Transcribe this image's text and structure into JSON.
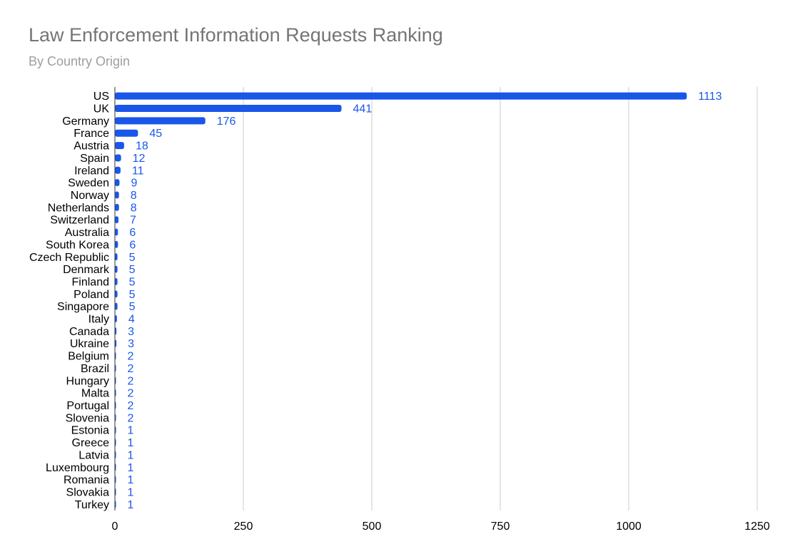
{
  "chart_data": {
    "type": "bar",
    "orientation": "horizontal",
    "title": "Law Enforcement Information Requests Ranking",
    "subtitle": "By Country Origin",
    "xlabel": "",
    "ylabel": "",
    "xlim": [
      0,
      1250
    ],
    "x_ticks": [
      0,
      250,
      500,
      750,
      1000,
      1250
    ],
    "grid": true,
    "data_labels": true,
    "bar_color": "#1a57e8",
    "label_color": "#1a57e8",
    "categories": [
      "US",
      "UK",
      "Germany",
      "France",
      "Austria",
      "Spain",
      "Ireland",
      "Sweden",
      "Norway",
      "Netherlands",
      "Switzerland",
      "Australia",
      "South Korea",
      "Czech Republic",
      "Denmark",
      "Finland",
      "Poland",
      "Singapore",
      "Italy",
      "Canada",
      "Ukraine",
      "Belgium",
      "Brazil",
      "Hungary",
      "Malta",
      "Portugal",
      "Slovenia",
      "Estonia",
      "Greece",
      "Latvia",
      "Luxembourg",
      "Romania",
      "Slovakia",
      "Turkey"
    ],
    "values": [
      1113,
      441,
      176,
      45,
      18,
      12,
      11,
      9,
      8,
      8,
      7,
      6,
      6,
      5,
      5,
      5,
      5,
      5,
      4,
      3,
      3,
      2,
      2,
      2,
      2,
      2,
      2,
      1,
      1,
      1,
      1,
      1,
      1,
      1
    ]
  }
}
